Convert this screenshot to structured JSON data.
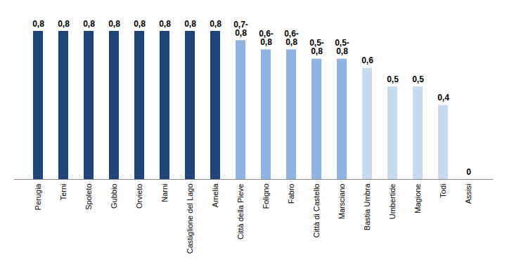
{
  "chart_data": {
    "type": "bar",
    "categories": [
      "Perugia",
      "Terni",
      "Spoleto",
      "Gubbio",
      "Orvieto",
      "Narni",
      "Castiglione del Lago",
      "Amelia",
      "Città della Pieve",
      "Foligno",
      "Fabro",
      "Città di Castello",
      "Marsciano",
      "Bastia Umbra",
      "Umbertide",
      "Magione",
      "Todi",
      "Assisi"
    ],
    "values": [
      0.8,
      0.8,
      0.8,
      0.8,
      0.8,
      0.8,
      0.8,
      0.8,
      0.75,
      0.7,
      0.7,
      0.65,
      0.65,
      0.6,
      0.5,
      0.5,
      0.4,
      0
    ],
    "value_labels": [
      "0,8",
      "0,8",
      "0,8",
      "0,8",
      "0,8",
      "0,8",
      "0,8",
      "0,8",
      "0,7-0,8",
      "0,6-0,8",
      "0,6-0,8",
      "0,5-0,8",
      "0,5-0,8",
      "0,6",
      "0,5",
      "0,5",
      "0,4",
      "0"
    ],
    "colors": [
      "#1f4678",
      "#1f4678",
      "#1f4678",
      "#1f4678",
      "#1f4678",
      "#1f4678",
      "#1f4678",
      "#1f4678",
      "#8db4e2",
      "#8db4e2",
      "#8db4e2",
      "#8db4e2",
      "#8db4e2",
      "#c5d9f1",
      "#c5d9f1",
      "#c5d9f1",
      "#c5d9f1",
      "#c5d9f1"
    ],
    "ylim": [
      0,
      0.8
    ],
    "data_labels": true,
    "tick_labels": "x",
    "grid": false
  }
}
